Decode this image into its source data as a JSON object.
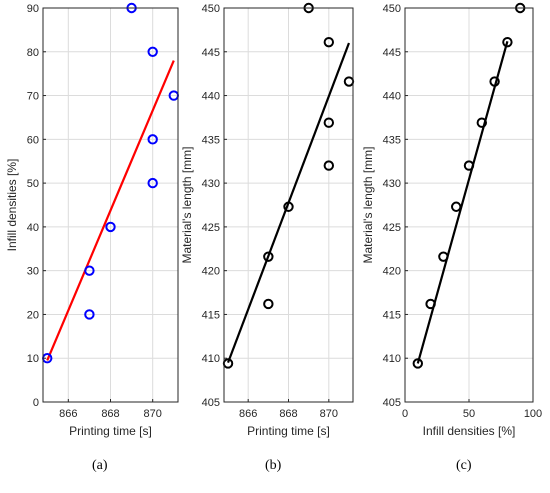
{
  "chart_data": [
    {
      "type": "scatter",
      "panel_label": "(a)",
      "xlabel": "Printing time [s]",
      "ylabel": "Infill densities [%]",
      "xlim": [
        864.8,
        871.2
      ],
      "ylim": [
        0,
        90
      ],
      "xticks": [
        866,
        868,
        870
      ],
      "yticks": [
        0,
        10,
        20,
        30,
        40,
        50,
        60,
        70,
        80,
        90
      ],
      "grid": true,
      "colors": {
        "marker": "#0000ff",
        "fit": "#ff0000"
      },
      "points": [
        {
          "x": 865,
          "y": 10
        },
        {
          "x": 867,
          "y": 20
        },
        {
          "x": 867,
          "y": 30
        },
        {
          "x": 868,
          "y": 40
        },
        {
          "x": 870,
          "y": 50
        },
        {
          "x": 870,
          "y": 60
        },
        {
          "x": 871,
          "y": 70
        },
        {
          "x": 870,
          "y": 80
        },
        {
          "x": 869,
          "y": 90
        }
      ],
      "fit_line": [
        {
          "x": 865,
          "y": 9.5
        },
        {
          "x": 871,
          "y": 78
        }
      ]
    },
    {
      "type": "scatter",
      "panel_label": "(b)",
      "xlabel": "Printing time [s]",
      "ylabel": "Material's length [mm]",
      "xlim": [
        864.8,
        871.2
      ],
      "ylim": [
        405,
        450
      ],
      "xticks": [
        866,
        868,
        870
      ],
      "yticks": [
        405,
        410,
        415,
        420,
        425,
        430,
        435,
        440,
        445,
        450
      ],
      "grid": true,
      "colors": {
        "marker": "#000000",
        "fit": "#000000"
      },
      "points": [
        {
          "x": 865,
          "y": 409.4
        },
        {
          "x": 867,
          "y": 416.2
        },
        {
          "x": 867,
          "y": 421.6
        },
        {
          "x": 868,
          "y": 427.3
        },
        {
          "x": 870,
          "y": 432.0
        },
        {
          "x": 870,
          "y": 436.9
        },
        {
          "x": 871,
          "y": 441.6
        },
        {
          "x": 870,
          "y": 446.1
        },
        {
          "x": 869,
          "y": 450.0
        }
      ],
      "fit_line": [
        {
          "x": 865,
          "y": 409.5
        },
        {
          "x": 871,
          "y": 446
        }
      ]
    },
    {
      "type": "scatter",
      "panel_label": "(c)",
      "xlabel": "Infill densities [%]",
      "ylabel": "Material's length [mm]",
      "xlim": [
        0,
        100
      ],
      "ylim": [
        405,
        450
      ],
      "xticks": [
        0,
        50,
        100
      ],
      "yticks": [
        405,
        410,
        415,
        420,
        425,
        430,
        435,
        440,
        445,
        450
      ],
      "grid": true,
      "colors": {
        "marker": "#000000",
        "fit": "#000000"
      },
      "points": [
        {
          "x": 10,
          "y": 409.4
        },
        {
          "x": 20,
          "y": 416.2
        },
        {
          "x": 30,
          "y": 421.6
        },
        {
          "x": 40,
          "y": 427.3
        },
        {
          "x": 50,
          "y": 432.0
        },
        {
          "x": 60,
          "y": 436.9
        },
        {
          "x": 70,
          "y": 441.6
        },
        {
          "x": 80,
          "y": 446.1
        },
        {
          "x": 90,
          "y": 450.0
        }
      ],
      "fit_line": [
        {
          "x": 10,
          "y": 409.4
        },
        {
          "x": 80,
          "y": 446.2
        }
      ]
    }
  ]
}
